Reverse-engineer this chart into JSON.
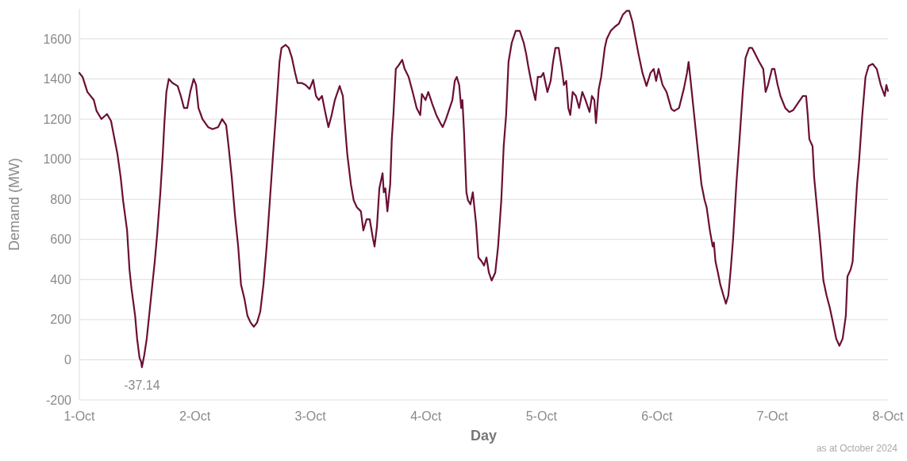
{
  "chart_data": {
    "type": "line",
    "xlabel": "Day",
    "ylabel": "Demand (MW)",
    "xlim": [
      "2024-10-01",
      "2024-10-08"
    ],
    "xticks": [
      {
        "value": "2024-10-01",
        "label": "1-Oct"
      },
      {
        "value": "2024-10-02",
        "label": "2-Oct"
      },
      {
        "value": "2024-10-03",
        "label": "3-Oct"
      },
      {
        "value": "2024-10-04",
        "label": "4-Oct"
      },
      {
        "value": "2024-10-05",
        "label": "5-Oct"
      },
      {
        "value": "2024-10-06",
        "label": "6-Oct"
      },
      {
        "value": "2024-10-07",
        "label": "7-Oct"
      },
      {
        "value": "2024-10-08",
        "label": "8-Oct"
      }
    ],
    "ylim": [
      -200,
      1750
    ],
    "yticks": [
      -200,
      0,
      200,
      400,
      600,
      800,
      1000,
      1200,
      1400,
      1600
    ],
    "grid": "y",
    "annotations": [
      {
        "text": "-37.14",
        "x": "2024-10-01T13:00",
        "y": -37.14
      },
      "as at October 2024"
    ],
    "series": [
      {
        "color": "#6b0f35",
        "x": [
          "2024-10-01T00:00",
          "2024-10-01T00:40",
          "2024-10-01T01:40",
          "2024-10-01T03:00",
          "2024-10-01T03:35",
          "2024-10-01T04:35",
          "2024-10-01T05:45",
          "2024-10-01T06:35",
          "2024-10-01T07:55",
          "2024-10-01T08:35",
          "2024-10-01T09:05",
          "2024-10-01T09:55",
          "2024-10-01T10:25",
          "2024-10-01T10:50",
          "2024-10-01T11:35",
          "2024-10-01T12:00",
          "2024-10-01T12:30",
          "2024-10-01T12:50",
          "2024-10-01T13:00",
          "2024-10-01T13:30",
          "2024-10-01T14:00",
          "2024-10-01T14:30",
          "2024-10-01T15:10",
          "2024-10-01T15:40",
          "2024-10-01T16:10",
          "2024-10-01T16:50",
          "2024-10-01T17:20",
          "2024-10-01T17:40",
          "2024-10-01T18:05",
          "2024-10-01T18:35",
          "2024-10-01T19:20",
          "2024-10-01T20:25",
          "2024-10-01T21:05",
          "2024-10-01T21:45",
          "2024-10-01T22:25",
          "2024-10-01T23:05",
          "2024-10-01T23:45",
          "2024-10-02T00:15",
          "2024-10-02T00:45",
          "2024-10-02T01:35",
          "2024-10-02T02:45",
          "2024-10-02T03:40",
          "2024-10-02T04:50",
          "2024-10-02T05:40",
          "2024-10-02T06:30",
          "2024-10-02T07:00",
          "2024-10-02T07:40",
          "2024-10-02T08:20",
          "2024-10-02T09:00",
          "2024-10-02T09:35",
          "2024-10-02T10:20",
          "2024-10-02T10:55",
          "2024-10-02T11:35",
          "2024-10-02T12:15",
          "2024-10-02T12:55",
          "2024-10-02T13:35",
          "2024-10-02T14:15",
          "2024-10-02T14:55",
          "2024-10-02T15:35",
          "2024-10-02T16:15",
          "2024-10-02T16:50",
          "2024-10-02T17:35",
          "2024-10-02T18:00",
          "2024-10-02T18:50",
          "2024-10-02T19:30",
          "2024-10-02T20:10",
          "2024-10-02T20:50",
          "2024-10-02T21:20",
          "2024-10-02T22:10",
          "2024-10-02T23:00",
          "2024-10-02T23:50",
          "2024-10-03T00:35",
          "2024-10-03T01:10",
          "2024-10-03T01:45",
          "2024-10-03T02:25",
          "2024-10-03T03:05",
          "2024-10-03T03:45",
          "2024-10-03T04:25",
          "2024-10-03T05:05",
          "2024-10-03T06:05",
          "2024-10-03T06:45",
          "2024-10-03T07:05",
          "2024-10-03T07:40",
          "2024-10-03T08:25",
          "2024-10-03T09:00",
          "2024-10-03T09:40",
          "2024-10-03T10:30",
          "2024-10-03T11:00",
          "2024-10-03T11:40",
          "2024-10-03T12:20",
          "2024-10-03T13:00",
          "2024-10-03T13:20",
          "2024-10-03T13:50",
          "2024-10-03T14:20",
          "2024-10-03T15:00",
          "2024-10-03T15:15",
          "2024-10-03T15:35",
          "2024-10-03T16:00",
          "2024-10-03T16:35",
          "2024-10-03T16:55",
          "2024-10-03T17:15",
          "2024-10-03T17:45",
          "2024-10-03T18:15",
          "2024-10-03T19:05",
          "2024-10-03T19:35",
          "2024-10-03T20:25",
          "2024-10-03T21:15",
          "2024-10-03T22:05",
          "2024-10-03T22:50",
          "2024-10-03T23:10",
          "2024-10-03T23:55",
          "2024-10-04T00:30",
          "2024-10-04T01:20",
          "2024-10-04T02:10",
          "2024-10-04T03:00",
          "2024-10-04T03:30",
          "2024-10-04T04:10",
          "2024-10-04T04:40",
          "2024-10-04T05:30",
          "2024-10-04T06:00",
          "2024-10-04T06:25",
          "2024-10-04T06:55",
          "2024-10-04T07:20",
          "2024-10-04T07:35",
          "2024-10-04T07:55",
          "2024-10-04T08:25",
          "2024-10-04T08:45",
          "2024-10-04T09:15",
          "2024-10-04T09:45",
          "2024-10-04T10:25",
          "2024-10-04T10:55",
          "2024-10-04T11:35",
          "2024-10-04T12:05",
          "2024-10-04T12:35",
          "2024-10-04T13:05",
          "2024-10-04T13:40",
          "2024-10-04T14:25",
          "2024-10-04T15:00",
          "2024-10-04T15:40",
          "2024-10-04T16:10",
          "2024-10-04T16:40",
          "2024-10-04T17:10",
          "2024-10-04T17:50",
          "2024-10-04T18:40",
          "2024-10-04T19:30",
          "2024-10-04T20:20",
          "2024-10-04T20:50",
          "2024-10-04T21:15",
          "2024-10-04T22:00",
          "2024-10-04T22:45",
          "2024-10-04T23:15",
          "2024-10-04T23:55",
          "2024-10-05T00:25",
          "2024-10-05T01:15",
          "2024-10-05T01:55",
          "2024-10-05T02:25",
          "2024-10-05T02:55",
          "2024-10-05T03:35",
          "2024-10-05T04:15",
          "2024-10-05T04:40",
          "2024-10-05T05:10",
          "2024-10-05T05:35",
          "2024-10-05T06:00",
          "2024-10-05T06:30",
          "2024-10-05T07:10",
          "2024-10-05T07:50",
          "2024-10-05T08:30",
          "2024-10-05T09:10",
          "2024-10-05T10:00",
          "2024-10-05T10:30",
          "2024-10-05T11:00",
          "2024-10-05T11:20",
          "2024-10-05T11:55",
          "2024-10-05T12:25",
          "2024-10-05T13:10",
          "2024-10-05T13:35",
          "2024-10-05T14:25",
          "2024-10-05T15:15",
          "2024-10-05T16:05",
          "2024-10-05T16:55",
          "2024-10-05T17:45",
          "2024-10-05T18:15",
          "2024-10-05T18:55",
          "2024-10-05T19:25",
          "2024-10-05T20:10",
          "2024-10-05T21:00",
          "2024-10-05T21:50",
          "2024-10-05T22:40",
          "2024-10-05T23:20",
          "2024-10-05T23:50",
          "2024-10-06T00:20",
          "2024-10-06T01:10",
          "2024-10-06T02:00",
          "2024-10-06T03:00",
          "2024-10-06T03:35",
          "2024-10-06T04:35",
          "2024-10-06T05:35",
          "2024-10-06T06:15",
          "2024-10-06T06:35",
          "2024-10-06T06:55",
          "2024-10-06T07:25",
          "2024-10-06T08:05",
          "2024-10-06T08:35",
          "2024-10-06T09:15",
          "2024-10-06T09:55",
          "2024-10-06T10:20",
          "2024-10-06T11:00",
          "2024-10-06T11:35",
          "2024-10-06T11:50",
          "2024-10-06T12:10",
          "2024-10-06T12:40",
          "2024-10-06T13:10",
          "2024-10-06T13:50",
          "2024-10-06T14:20",
          "2024-10-06T14:50",
          "2024-10-06T15:20",
          "2024-10-06T15:50",
          "2024-10-06T16:30",
          "2024-10-06T17:10",
          "2024-10-06T17:50",
          "2024-10-06T18:25",
          "2024-10-06T19:10",
          "2024-10-06T19:45",
          "2024-10-06T20:25",
          "2024-10-06T21:15",
          "2024-10-06T22:05",
          "2024-10-06T22:35",
          "2024-10-06T23:05",
          "2024-10-06T23:55",
          "2024-10-07T00:25",
          "2024-10-07T01:05",
          "2024-10-07T01:40",
          "2024-10-07T02:40",
          "2024-10-07T03:30",
          "2024-10-07T04:20",
          "2024-10-07T05:10",
          "2024-10-07T06:20",
          "2024-10-07T07:00",
          "2024-10-07T07:20",
          "2024-10-07T07:40",
          "2024-10-07T08:20",
          "2024-10-07T08:40",
          "2024-10-07T09:15",
          "2024-10-07T10:00",
          "2024-10-07T10:35",
          "2024-10-07T11:15",
          "2024-10-07T11:55",
          "2024-10-07T12:35",
          "2024-10-07T13:15",
          "2024-10-07T13:55",
          "2024-10-07T14:35",
          "2024-10-07T15:15",
          "2024-10-07T15:35",
          "2024-10-07T16:15",
          "2024-10-07T16:40",
          "2024-10-07T17:00",
          "2024-10-07T17:35",
          "2024-10-07T18:00",
          "2024-10-07T18:40",
          "2024-10-07T19:20",
          "2024-10-07T20:00",
          "2024-10-07T20:50",
          "2024-10-07T21:40",
          "2024-10-07T22:30",
          "2024-10-07T23:20",
          "2024-10-07T23:40",
          "2024-10-08T00:00"
        ],
        "values": [
          1430,
          1410,
          1335,
          1295,
          1240,
          1200,
          1225,
          1190,
          1025,
          910,
          795,
          645,
          450,
          355,
          220,
          105,
          10,
          -10,
          -37.14,
          25,
          105,
          220,
          375,
          490,
          625,
          835,
          1025,
          1180,
          1335,
          1400,
          1380,
          1365,
          1315,
          1255,
          1255,
          1340,
          1400,
          1370,
          1255,
          1200,
          1160,
          1150,
          1160,
          1200,
          1170,
          1065,
          910,
          720,
          565,
          375,
          300,
          220,
          185,
          165,
          185,
          240,
          375,
          565,
          795,
          1025,
          1220,
          1485,
          1555,
          1570,
          1555,
          1505,
          1430,
          1380,
          1380,
          1370,
          1350,
          1395,
          1315,
          1295,
          1315,
          1235,
          1160,
          1220,
          1295,
          1365,
          1315,
          1200,
          1025,
          875,
          795,
          760,
          740,
          645,
          700,
          700,
          605,
          565,
          665,
          855,
          930,
          835,
          855,
          740,
          875,
          1100,
          1220,
          1450,
          1465,
          1495,
          1450,
          1410,
          1335,
          1255,
          1220,
          1325,
          1295,
          1335,
          1275,
          1220,
          1180,
          1160,
          1200,
          1235,
          1295,
          1390,
          1410,
          1370,
          1255,
          1295,
          1140,
          835,
          795,
          775,
          835,
          680,
          510,
          490,
          470,
          510,
          435,
          395,
          435,
          565,
          795,
          1065,
          1220,
          1485,
          1580,
          1640,
          1640,
          1580,
          1525,
          1465,
          1370,
          1295,
          1410,
          1410,
          1430,
          1335,
          1390,
          1485,
          1555,
          1555,
          1450,
          1370,
          1390,
          1255,
          1220,
          1335,
          1315,
          1255,
          1335,
          1295,
          1235,
          1315,
          1295,
          1180,
          1350,
          1410,
          1555,
          1600,
          1640,
          1660,
          1675,
          1720,
          1740,
          1740,
          1685,
          1620,
          1525,
          1430,
          1365,
          1430,
          1450,
          1390,
          1450,
          1370,
          1335,
          1250,
          1240,
          1255,
          1350,
          1430,
          1485,
          1410,
          1295,
          1140,
          1025,
          875,
          795,
          760,
          645,
          565,
          585,
          490,
          435,
          375,
          320,
          280,
          320,
          450,
          605,
          875,
          1100,
          1335,
          1505,
          1555,
          1555,
          1525,
          1485,
          1450,
          1335,
          1370,
          1450,
          1450,
          1370,
          1315,
          1255,
          1235,
          1245,
          1275,
          1315,
          1315,
          1220,
          1100,
          1065,
          910,
          760,
          565,
          395,
          320,
          260,
          185,
          105,
          70,
          105,
          220,
          415,
          450,
          490,
          645,
          875,
          990,
          1220,
          1410,
          1465,
          1475,
          1450,
          1370,
          1315,
          1370,
          1340
        ]
      }
    ]
  }
}
